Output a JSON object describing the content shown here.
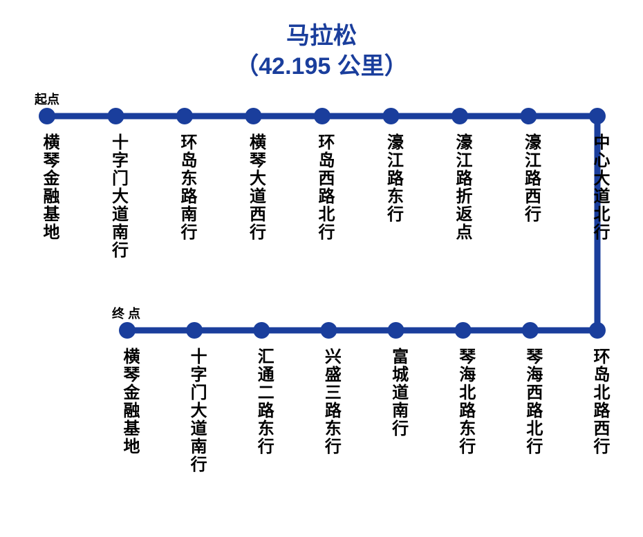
{
  "title": {
    "line1": "马拉松",
    "line2": "（42.195 公里）",
    "color": "#1a3e9c",
    "fontSize": 34
  },
  "line": {
    "color": "#1a3e9c",
    "width": 9,
    "nodeRadius": 12,
    "nodeColor": "#1a3e9c"
  },
  "rowLabel": {
    "start": "起点",
    "end": "终 点",
    "color": "#000000",
    "fontSize": 18
  },
  "stopLabel": {
    "fontSize": 24,
    "color": "#000000",
    "offsetBelow": 25
  },
  "layout": {
    "topRowY": 168,
    "bottomRowY": 478,
    "topStartX": 68,
    "topEndX": 864,
    "bottomStartX": 184,
    "bottomEndX": 864
  },
  "topStops": [
    {
      "name": "横琴金融基地",
      "bold": true
    },
    {
      "name": "十字门大道南行"
    },
    {
      "name": "环岛东路南行"
    },
    {
      "name": "横琴大道西行"
    },
    {
      "name": "环岛西路北行"
    },
    {
      "name": "濠江路东行"
    },
    {
      "name": "濠江路折返点"
    },
    {
      "name": "濠江路西行"
    },
    {
      "name": "中心大道北行"
    }
  ],
  "bottomStops": [
    {
      "name": "横琴金融基地",
      "bold": true
    },
    {
      "name": "十字门大道南行"
    },
    {
      "name": "汇通二路东行"
    },
    {
      "name": "兴盛三路东行"
    },
    {
      "name": "富城道南行"
    },
    {
      "name": "琴海北路东行"
    },
    {
      "name": "琴海西路北行"
    },
    {
      "name": "环岛北路西行"
    }
  ]
}
